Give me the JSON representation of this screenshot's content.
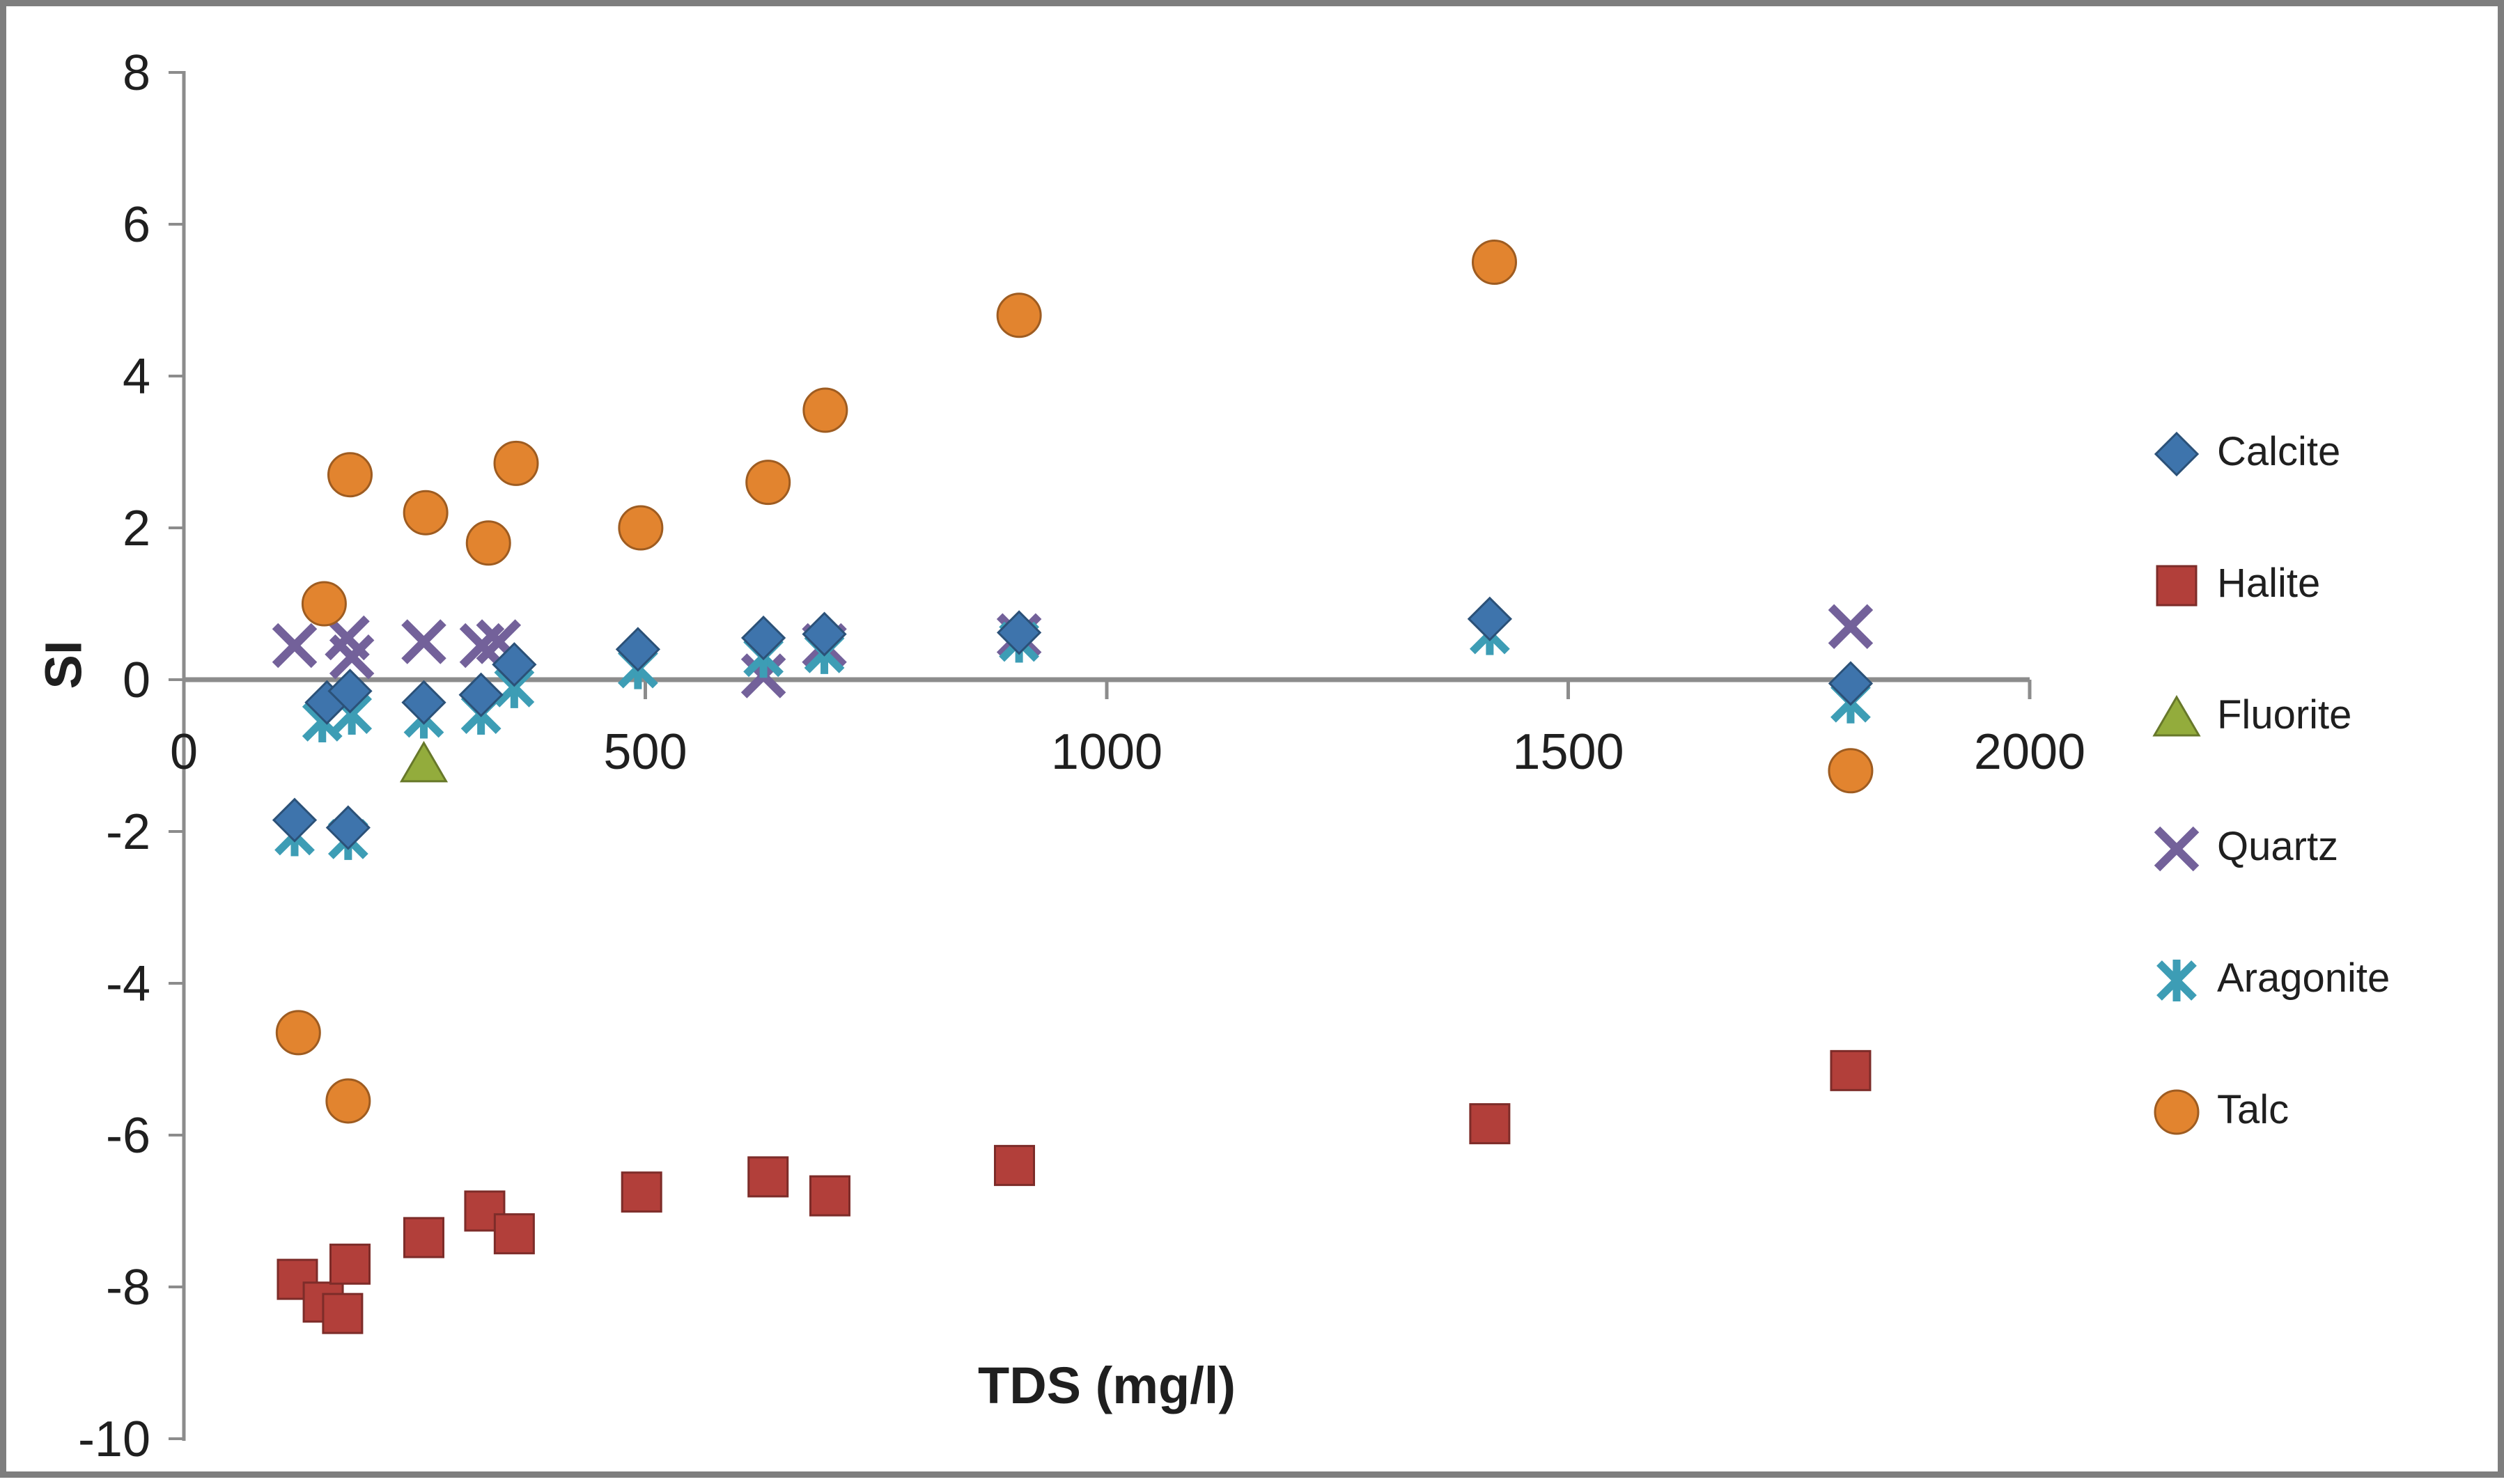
{
  "chart_data": {
    "type": "scatter",
    "title": "",
    "xlabel": "TDS (mg/l)",
    "ylabel": "SI",
    "xlim": [
      0,
      2000
    ],
    "ylim": [
      -10,
      8
    ],
    "x_ticks": [
      0,
      500,
      1000,
      1500,
      2000
    ],
    "y_ticks": [
      8,
      6,
      4,
      2,
      0,
      -2,
      -4,
      -6,
      -8,
      -10
    ],
    "grid": false,
    "legend_position": "right",
    "axis_color": "#8c8c8c",
    "text_color": "#1f1f1f",
    "background": "#ffffff",
    "border_color": "#7e7e7e",
    "series": [
      {
        "name": "Calcite",
        "marker": "diamond",
        "color": "#3e74ac",
        "points": [
          [
            120,
            -1.85
          ],
          [
            155,
            -0.3
          ],
          [
            178,
            -1.95
          ],
          [
            180,
            -0.15
          ],
          [
            260,
            -0.3
          ],
          [
            322,
            -0.2
          ],
          [
            358,
            0.2
          ],
          [
            492,
            0.4
          ],
          [
            628,
            0.55
          ],
          [
            694,
            0.6
          ],
          [
            905,
            0.62
          ],
          [
            1415,
            0.8
          ],
          [
            1806,
            -0.05
          ]
        ]
      },
      {
        "name": "Halite",
        "marker": "square",
        "color": "#b23f3a",
        "points": [
          [
            123,
            -7.9
          ],
          [
            151,
            -8.2
          ],
          [
            172,
            -8.35
          ],
          [
            180,
            -7.7
          ],
          [
            260,
            -7.35
          ],
          [
            326,
            -7.0
          ],
          [
            358,
            -7.3
          ],
          [
            496,
            -6.75
          ],
          [
            633,
            -6.55
          ],
          [
            700,
            -6.8
          ],
          [
            900,
            -6.4
          ],
          [
            1415,
            -5.85
          ],
          [
            1806,
            -5.15
          ]
        ]
      },
      {
        "name": "Fluorite",
        "marker": "triangle",
        "color": "#93ac3c",
        "points": [
          [
            260,
            -1.1
          ]
        ]
      },
      {
        "name": "Quartz",
        "marker": "x",
        "color": "#73619a",
        "points": [
          [
            120,
            0.45
          ],
          [
            177,
            0.55
          ],
          [
            182,
            0.3
          ],
          [
            260,
            0.5
          ],
          [
            323,
            0.45
          ],
          [
            341,
            0.5
          ],
          [
            628,
            0.05
          ],
          [
            694,
            0.45
          ],
          [
            905,
            0.58
          ],
          [
            1806,
            0.7
          ]
        ]
      },
      {
        "name": "Aragonite",
        "marker": "asterisk",
        "color": "#3d9db5",
        "points": [
          [
            120,
            -2.05
          ],
          [
            150,
            -0.55
          ],
          [
            178,
            -2.1
          ],
          [
            182,
            -0.45
          ],
          [
            260,
            -0.5
          ],
          [
            322,
            -0.45
          ],
          [
            358,
            -0.1
          ],
          [
            492,
            0.15
          ],
          [
            628,
            0.3
          ],
          [
            694,
            0.35
          ],
          [
            905,
            0.5
          ],
          [
            1415,
            0.6
          ],
          [
            1806,
            -0.3
          ]
        ]
      },
      {
        "name": "Talc",
        "marker": "circle",
        "color": "#e2842f",
        "points": [
          [
            124,
            -4.65
          ],
          [
            152,
            1.0
          ],
          [
            178,
            -5.55
          ],
          [
            180,
            2.7
          ],
          [
            262,
            2.2
          ],
          [
            330,
            1.8
          ],
          [
            360,
            2.85
          ],
          [
            495,
            2.0
          ],
          [
            633,
            2.6
          ],
          [
            695,
            3.55
          ],
          [
            905,
            4.8
          ],
          [
            1420,
            5.5
          ],
          [
            1806,
            -1.2
          ]
        ]
      }
    ]
  }
}
